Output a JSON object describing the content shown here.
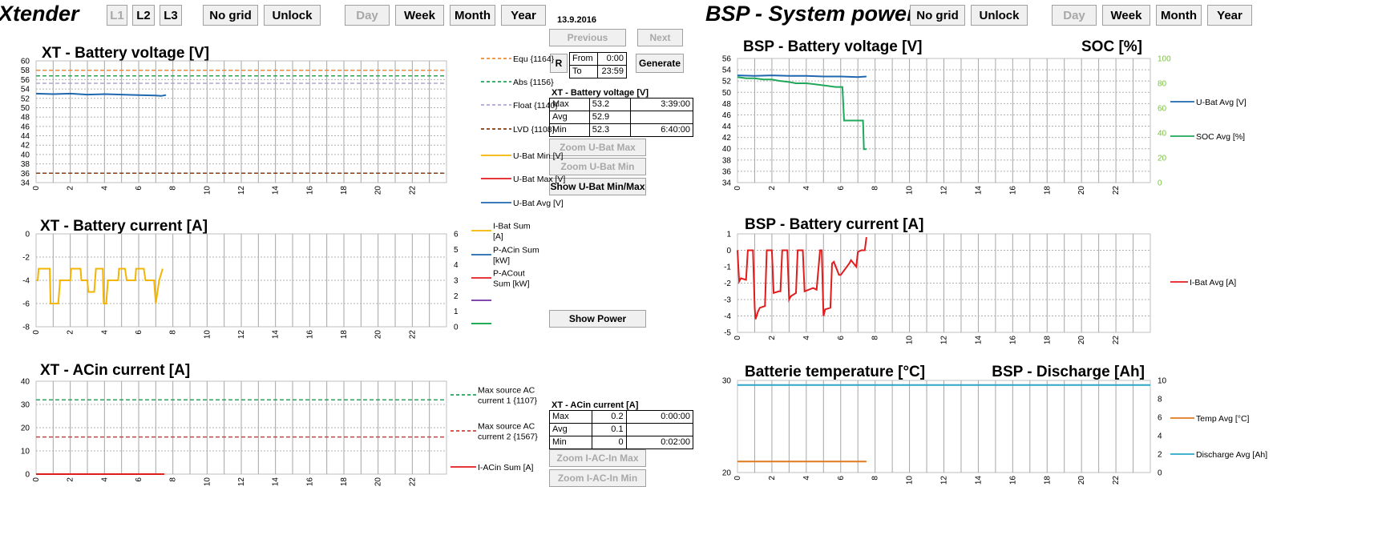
{
  "xtender": {
    "title": "Xtender",
    "buttons": {
      "l1": "L1",
      "l2": "L2",
      "l3": "L3",
      "nogrid": "No grid",
      "unlock": "Unlock",
      "day": "Day",
      "week": "Week",
      "month": "Month",
      "year": "Year"
    },
    "date": "13.9.2016",
    "previous_label": "Previous",
    "next_label": "Next",
    "r_label": "R",
    "generate_label": "Generate",
    "from_label": "From",
    "from_value": "0:00",
    "to_label": "To",
    "to_value": "23:59",
    "volt_table": {
      "title": "XT - Battery voltage [V]",
      "rows": [
        {
          "label": "Max",
          "value": "53.2",
          "time": "3:39:00"
        },
        {
          "label": "Avg",
          "value": "52.9",
          "time": ""
        },
        {
          "label": "Min",
          "value": "52.3",
          "time": "6:40:00"
        }
      ]
    },
    "zoom_ubat_max": "Zoom U-Bat Max",
    "zoom_ubat_min": "Zoom U-Bat Min",
    "show_ubat_minmax": "Show U-Bat Min/Max",
    "show_power": "Show Power",
    "acin_table": {
      "title": "XT - ACin current [A]",
      "rows": [
        {
          "label": "Max",
          "value": "0.2",
          "time": "0:00:00"
        },
        {
          "label": "Avg",
          "value": "0.1",
          "time": ""
        },
        {
          "label": "Min",
          "value": "0",
          "time": "0:02:00"
        }
      ]
    },
    "zoom_iac_max": "Zoom I-AC-In Max",
    "zoom_iac_min": "Zoom I-AC-In Min"
  },
  "bsp": {
    "title": "BSP - System power",
    "buttons": {
      "nogrid": "No grid",
      "unlock": "Unlock",
      "day": "Day",
      "week": "Week",
      "month": "Month",
      "year": "Year"
    }
  },
  "colors": {
    "equ": "#f28b30",
    "abs": "#1fa85a",
    "float": "#b3a2d9",
    "lvd": "#8b3d10",
    "umin": "#f4b400",
    "umax": "#e21c1c",
    "uavg": "#1f68b0",
    "ibat": "#f4b400",
    "pacin": "#1f68b0",
    "pacout": "#e21c1c",
    "purple": "#7030a0",
    "green": "#00a040",
    "soc": "#1fa85a",
    "temp": "#e07a20",
    "discharge": "#2aa6c8",
    "ref1": "#1fa85a",
    "ref2": "#d04040"
  },
  "chart_data": [
    {
      "id": "xt_volt",
      "type": "line",
      "title": "XT - Battery voltage [V]",
      "xlim": [
        0,
        24
      ],
      "ylim": [
        34,
        60
      ],
      "ytick_step": 2,
      "xtick_labels": [
        "0",
        "2",
        "4",
        "6",
        "8",
        "10",
        "12",
        "14",
        "16",
        "18",
        "20",
        "22"
      ],
      "ytick_labels": [
        "60",
        "58",
        "56",
        "54",
        "52",
        "50",
        "48",
        "46",
        "44",
        "42",
        "40",
        "38",
        "36",
        "34"
      ],
      "reference_lines": [
        {
          "name": "Equ {1164}",
          "y": 58,
          "color_key": "equ",
          "dash": true
        },
        {
          "name": "Abs {1156}",
          "y": 56.8,
          "color_key": "abs",
          "dash": true
        },
        {
          "name": "Float {1140}",
          "y": 55.2,
          "color_key": "float",
          "dash": true
        },
        {
          "name": "LVD {1108}",
          "y": 36,
          "color_key": "lvd",
          "dash": true
        }
      ],
      "series": [
        {
          "name": "U-Bat Min [V]",
          "color_key": "umin",
          "x": [],
          "y": []
        },
        {
          "name": "U-Bat Max [V]",
          "color_key": "umax",
          "x": [],
          "y": []
        },
        {
          "name": "U-Bat Avg [V]",
          "color_key": "uavg",
          "x": [
            0,
            1,
            2,
            3,
            4,
            5,
            6,
            7,
            7.3,
            7.6
          ],
          "y": [
            53.0,
            52.9,
            53.0,
            52.8,
            52.9,
            52.8,
            52.7,
            52.6,
            52.5,
            52.7
          ]
        }
      ],
      "legend": [
        "Equ {1164}",
        "Abs {1156}",
        "Float {1140}",
        "LVD {1108}",
        "U-Bat Min [V]",
        "U-Bat Max [V]",
        "U-Bat Avg [V]"
      ]
    },
    {
      "id": "xt_curr",
      "type": "line",
      "title": "XT - Battery current [A]",
      "xlim": [
        0,
        24
      ],
      "ylim": [
        -8,
        0
      ],
      "y2lim": [
        0,
        6
      ],
      "xtick_labels": [
        "0",
        "2",
        "4",
        "6",
        "8",
        "10",
        "12",
        "14",
        "16",
        "18",
        "20",
        "22"
      ],
      "ytick_labels": [
        "0",
        "-2",
        "-4",
        "-6",
        "-8"
      ],
      "y2tick_labels": [
        "6",
        "5",
        "4",
        "3",
        "2",
        "1",
        "0"
      ],
      "series": [
        {
          "name": "I-Bat Sum [A]",
          "color_key": "ibat",
          "x": [
            0,
            0.1,
            0.15,
            0.8,
            0.85,
            1.3,
            1.4,
            2.0,
            2.05,
            2.6,
            2.65,
            3.0,
            3.05,
            3.4,
            3.5,
            3.9,
            3.95,
            4.1,
            4.2,
            4.8,
            4.85,
            5.2,
            5.3,
            5.8,
            5.85,
            6.3,
            6.4,
            6.9,
            7.0,
            7.2,
            7.4
          ],
          "y": [
            -4,
            -4,
            -3,
            -3,
            -6,
            -6,
            -4,
            -4,
            -3,
            -3,
            -4,
            -4,
            -5,
            -5,
            -3,
            -3,
            -6,
            -6,
            -4,
            -4,
            -3,
            -3,
            -4,
            -4,
            -3,
            -3,
            -4,
            -4,
            -6,
            -4,
            -3
          ]
        },
        {
          "name": "P-ACin Sum [kW]",
          "color_key": "pacin",
          "x": [],
          "y": []
        },
        {
          "name": "P-ACout Sum [kW]",
          "color_key": "pacout",
          "x": [],
          "y": []
        },
        {
          "name": "",
          "color_key": "purple",
          "x": [],
          "y": []
        },
        {
          "name": "",
          "color_key": "green",
          "x": [],
          "y": []
        }
      ],
      "legend": [
        "I-Bat Sum [A]",
        "P-ACin Sum [kW]",
        "P-ACout Sum [kW]"
      ]
    },
    {
      "id": "xt_acin",
      "type": "line",
      "title": "XT - ACin current [A]",
      "xlim": [
        0,
        24
      ],
      "ylim": [
        0,
        40
      ],
      "xtick_labels": [
        "0",
        "2",
        "4",
        "6",
        "8",
        "10",
        "12",
        "14",
        "16",
        "18",
        "20",
        "22"
      ],
      "ytick_labels": [
        "40",
        "30",
        "20",
        "10",
        "0"
      ],
      "reference_lines": [
        {
          "name": "Max source AC current 1 {1107}",
          "y": 32,
          "color_key": "ref1",
          "dash": true
        },
        {
          "name": "Max source AC current 2 {1567}",
          "y": 16,
          "color_key": "ref2",
          "dash": true
        }
      ],
      "series": [
        {
          "name": "I-ACin Sum [A]",
          "color_key": "umax",
          "x": [
            0,
            7.5
          ],
          "y": [
            0,
            0
          ]
        }
      ],
      "legend": [
        "Max source AC current 1 {1107}",
        "Max source AC current 2 {1567}",
        "I-ACin Sum [A]"
      ]
    },
    {
      "id": "bsp_volt",
      "type": "line",
      "title": "BSP - Battery voltage [V]",
      "title2": "SOC [%]",
      "xlim": [
        0,
        24
      ],
      "ylim": [
        34,
        56
      ],
      "y2lim": [
        0,
        100
      ],
      "xtick_labels": [
        "0",
        "2",
        "4",
        "6",
        "8",
        "10",
        "12",
        "14",
        "16",
        "18",
        "20",
        "22"
      ],
      "ytick_labels": [
        "56",
        "54",
        "52",
        "50",
        "48",
        "46",
        "44",
        "42",
        "40",
        "38",
        "36",
        "34"
      ],
      "y2tick_labels": [
        "100",
        "80",
        "60",
        "40",
        "20",
        "0"
      ],
      "series": [
        {
          "name": "U-Bat Avg [V]",
          "color_key": "uavg",
          "axis": "left",
          "x": [
            0,
            1,
            2,
            3,
            4,
            5,
            6,
            7,
            7.5
          ],
          "y": [
            53.0,
            52.9,
            53.0,
            52.9,
            52.9,
            52.8,
            52.8,
            52.7,
            52.8
          ]
        },
        {
          "name": "SOC Avg [%]",
          "color_key": "soc",
          "axis": "right",
          "x": [
            0,
            0.5,
            1.0,
            1.5,
            2.0,
            2.4,
            3.0,
            3.4,
            4.0,
            4.6,
            5.2,
            5.7,
            6.1,
            6.2,
            7.3,
            7.35,
            7.5
          ],
          "y": [
            85,
            84,
            84,
            83,
            83,
            82,
            81,
            80,
            80,
            79,
            78,
            77,
            77,
            50,
            50,
            27,
            27
          ]
        }
      ],
      "legend": [
        "U-Bat Avg [V]",
        "SOC Avg [%]"
      ]
    },
    {
      "id": "bsp_curr",
      "type": "line",
      "title": "BSP - Battery current [A]",
      "xlim": [
        0,
        24
      ],
      "ylim": [
        -5,
        1
      ],
      "xtick_labels": [
        "0",
        "2",
        "4",
        "6",
        "8",
        "10",
        "12",
        "14",
        "16",
        "18",
        "20",
        "22"
      ],
      "ytick_labels": [
        "1",
        "0",
        "-1",
        "-2",
        "-3",
        "-4",
        "-5"
      ],
      "series": [
        {
          "name": "I-Bat Avg [A]",
          "color_key": "umax",
          "x": [
            0,
            0.1,
            0.2,
            0.5,
            0.6,
            0.9,
            1.0,
            1.05,
            1.2,
            1.3,
            1.6,
            1.7,
            2.0,
            2.1,
            2.4,
            2.5,
            2.6,
            2.9,
            3.0,
            3.1,
            3.4,
            3.5,
            3.8,
            3.9,
            4.4,
            4.6,
            4.8,
            4.9,
            5.0,
            5.1,
            5.4,
            5.5,
            5.6,
            5.9,
            6.0,
            6.5,
            6.6,
            6.9,
            7.0,
            7.2,
            7.4,
            7.5
          ],
          "y": [
            0,
            -1.9,
            -1.7,
            -1.8,
            0,
            0,
            -3.5,
            -4.2,
            -3.7,
            -3.5,
            -3.4,
            0,
            0,
            -2.6,
            -2.5,
            -2.5,
            0,
            0,
            -3.0,
            -2.8,
            -2.6,
            0,
            0,
            -2.5,
            -2.3,
            -2.4,
            0,
            0,
            -4.0,
            -3.6,
            -3.5,
            -0.8,
            -0.7,
            -1.5,
            -1.5,
            -0.8,
            -0.6,
            -1.0,
            -0.1,
            0,
            0,
            0.8
          ]
        }
      ],
      "legend": [
        "I-Bat Avg [A]"
      ]
    },
    {
      "id": "bsp_temp",
      "type": "line",
      "title": "Batterie temperature [°C]",
      "title2": "BSP - Discharge [Ah]",
      "xlim": [
        0,
        24
      ],
      "ylim": [
        20,
        30
      ],
      "y2lim": [
        0,
        10
      ],
      "xtick_labels": [
        "0",
        "2",
        "4",
        "6",
        "8",
        "10",
        "12",
        "14",
        "16",
        "18",
        "20",
        "22"
      ],
      "ytick_labels": [
        "30",
        "20"
      ],
      "y2tick_labels": [
        "10",
        "8",
        "6",
        "4",
        "2",
        "0"
      ],
      "series": [
        {
          "name": "Temp Avg [°C]",
          "color_key": "temp",
          "axis": "left",
          "x": [
            0,
            7.5
          ],
          "y": [
            21.2,
            21.2
          ]
        },
        {
          "name": "Discharge Avg [Ah]",
          "color_key": "discharge",
          "axis": "right",
          "x": [
            0,
            24
          ],
          "y": [
            9.5,
            9.5
          ]
        }
      ],
      "legend": [
        "Temp Avg [°C]",
        "Discharge Avg [Ah]"
      ]
    }
  ]
}
